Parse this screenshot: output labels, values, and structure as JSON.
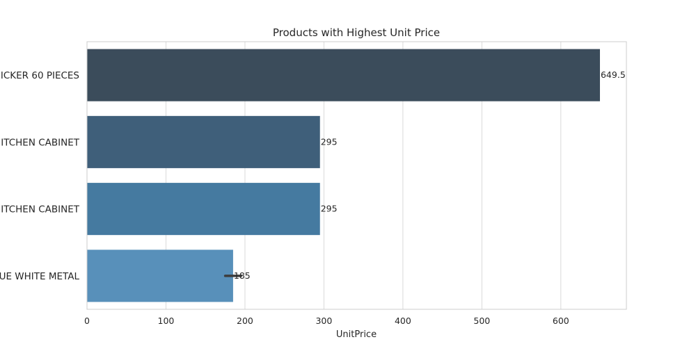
{
  "chart_data": {
    "type": "bar",
    "orientation": "horizontal",
    "title": "Products with Highest Unit Price",
    "xlabel": "UnitPrice",
    "ylabel": "",
    "categories": [
      "ICKER 60 PIECES",
      "ITCHEN CABINET",
      "ITCHEN CABINET",
      "UE WHITE METAL"
    ],
    "values": [
      649.5,
      295,
      295,
      185
    ],
    "data_labels": [
      "649.5",
      "295",
      "295",
      "185"
    ],
    "error_bar": {
      "category_index": 3,
      "low": 175,
      "high": 195
    },
    "xlim": [
      0,
      683
    ],
    "xticks": [
      0,
      100,
      200,
      300,
      400,
      500,
      600
    ],
    "grid": true,
    "colors": [
      "#3b4c5b",
      "#3f5f7a",
      "#457aa0",
      "#5890ba"
    ],
    "error_bar_color": "#3d3d3d",
    "grid_color": "#d9d9d9",
    "frame_color": "#cccccc"
  }
}
